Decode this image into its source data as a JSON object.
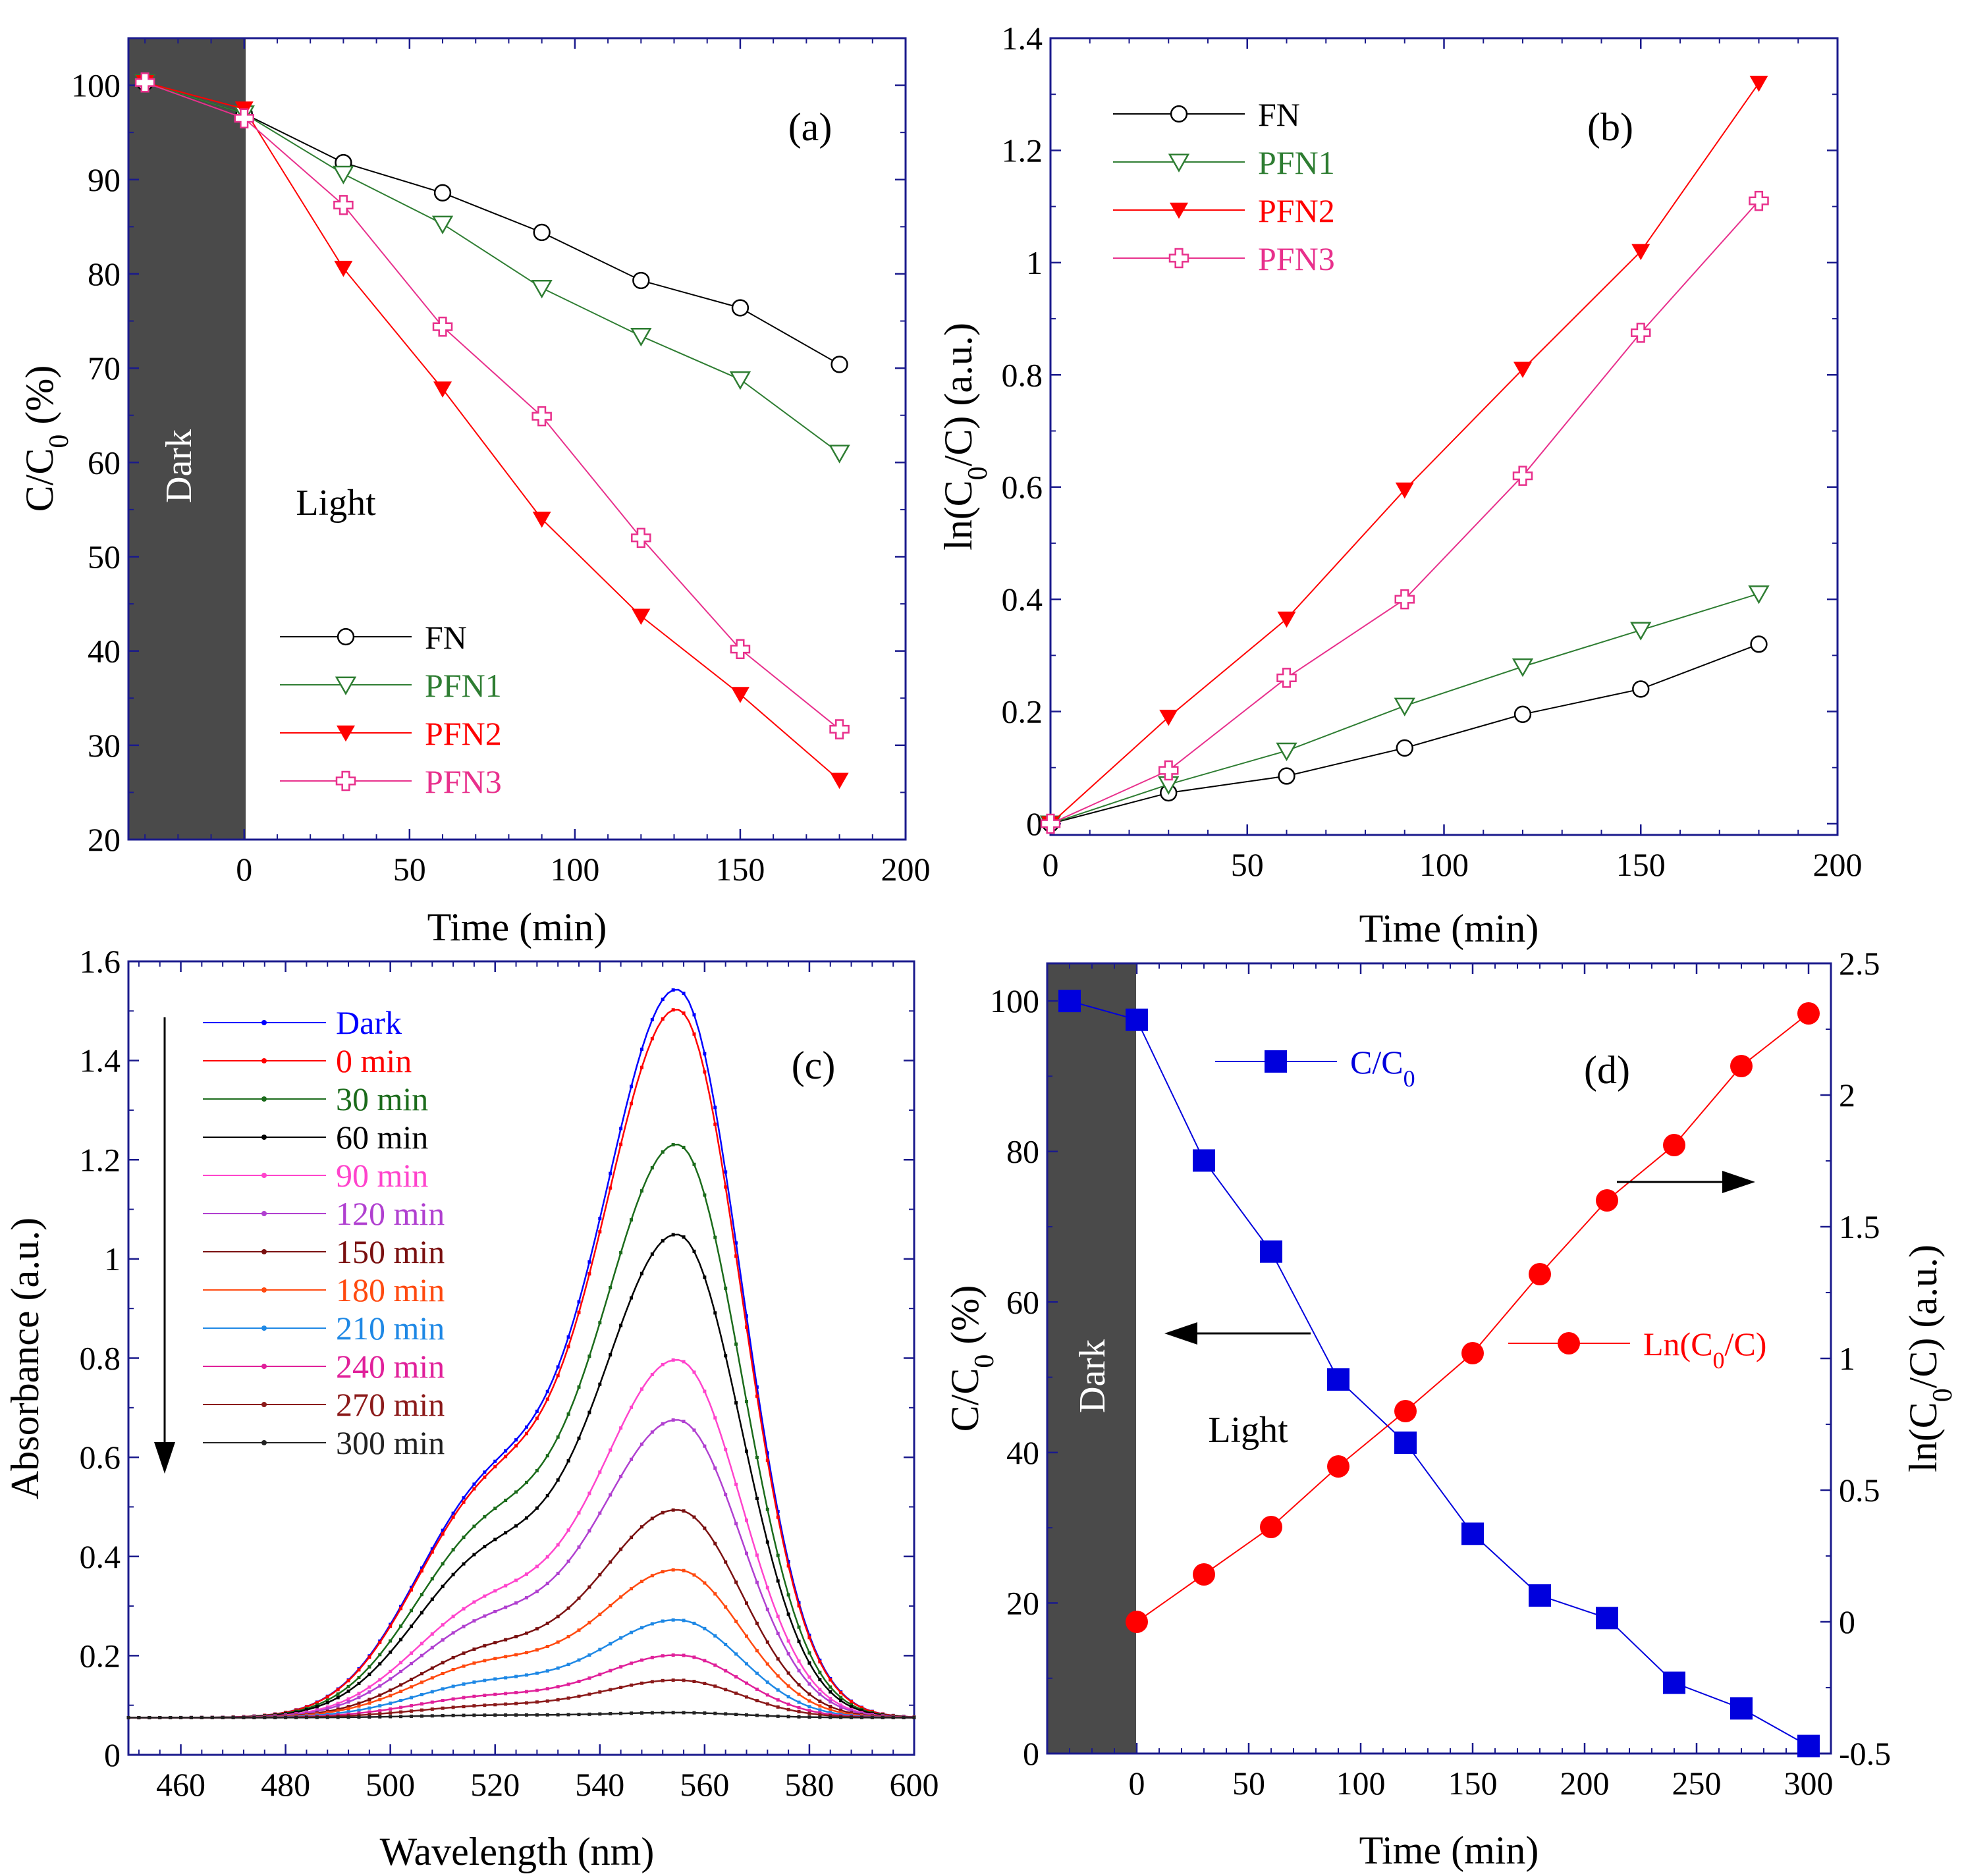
{
  "colors": {
    "FN": "#000000",
    "PFN1": "#2e7d32",
    "PFN2": "#ff0000",
    "PFN3": "#e8308c",
    "frame": "#1a1a8c",
    "dark_band": "#4a4a4a"
  },
  "charts": {
    "a": {
      "type": "line",
      "panel_label": "(a)",
      "xlabel": "Time (min)",
      "ylabel": "C/C0 (%)",
      "xlim": [
        -35,
        200
      ],
      "ylim": [
        20,
        105
      ],
      "xticks": [
        "0",
        "50",
        "100",
        "150",
        "200"
      ],
      "yticks": [
        "20",
        "30",
        "40",
        "50",
        "60",
        "70",
        "80",
        "90",
        "100"
      ],
      "annotations": {
        "dark": "Dark",
        "light": "Light"
      },
      "series": [
        {
          "name": "FN",
          "x": [
            -30,
            0,
            30,
            60,
            90,
            120,
            150,
            180
          ],
          "y": [
            100.3,
            97,
            91.8,
            88.6,
            84.4,
            79.3,
            76.4,
            70.4
          ]
        },
        {
          "name": "PFN1",
          "x": [
            -30,
            0,
            30,
            60,
            90,
            120,
            150,
            180
          ],
          "y": [
            100.3,
            97,
            90.6,
            85.3,
            78.5,
            73.4,
            68.8,
            61
          ]
        },
        {
          "name": "PFN2",
          "x": [
            -30,
            0,
            30,
            60,
            90,
            120,
            150,
            180
          ],
          "y": [
            100.3,
            97.5,
            80.6,
            67.8,
            54,
            43.7,
            35.4,
            26.3
          ]
        },
        {
          "name": "PFN3",
          "x": [
            -30,
            0,
            30,
            60,
            90,
            120,
            150,
            180
          ],
          "y": [
            100.3,
            96.5,
            87.3,
            74.4,
            64.9,
            52,
            40.2,
            31.7
          ]
        }
      ]
    },
    "b": {
      "type": "line",
      "panel_label": "(b)",
      "xlabel": "Time (min)",
      "ylabel": "ln(C0/C) (a.u.)",
      "xlim": [
        0,
        200
      ],
      "ylim": [
        -0.02,
        1.4
      ],
      "xticks": [
        "0",
        "50",
        "100",
        "150",
        "200"
      ],
      "yticks": [
        "0",
        "0.2",
        "0.4",
        "0.6",
        "0.8",
        "1",
        "1.2",
        "1.4"
      ],
      "series": [
        {
          "name": "FN",
          "x": [
            0,
            30,
            60,
            90,
            120,
            150,
            180
          ],
          "y": [
            0,
            0.055,
            0.085,
            0.135,
            0.195,
            0.24,
            0.32
          ]
        },
        {
          "name": "PFN1",
          "x": [
            0,
            30,
            60,
            90,
            120,
            150,
            180
          ],
          "y": [
            0,
            0.07,
            0.13,
            0.21,
            0.28,
            0.345,
            0.41
          ]
        },
        {
          "name": "PFN2",
          "x": [
            0,
            30,
            60,
            90,
            120,
            150,
            180
          ],
          "y": [
            0,
            0.19,
            0.365,
            0.595,
            0.81,
            1.02,
            1.32
          ]
        },
        {
          "name": "PFN3",
          "x": [
            0,
            30,
            60,
            90,
            120,
            150,
            180
          ],
          "y": [
            0,
            0.095,
            0.26,
            0.4,
            0.62,
            0.875,
            1.11
          ]
        }
      ]
    },
    "c": {
      "type": "line",
      "panel_label": "(c)",
      "xlabel": "Wavelength (nm)",
      "ylabel": "Absorbance (a.u.)",
      "xlim": [
        450,
        600
      ],
      "ylim": [
        0,
        1.6
      ],
      "xticks": [
        "460",
        "480",
        "500",
        "520",
        "540",
        "560",
        "580",
        "600"
      ],
      "yticks": [
        "0",
        "0.2",
        "0.4",
        "0.6",
        "0.8",
        "1",
        "1.2",
        "1.4",
        "1.6"
      ],
      "peak_nm": 555,
      "shoulder_nm": 518,
      "series": [
        {
          "name": "Dark",
          "color": "#0000ff",
          "peak": 1.53,
          "shoulder": 0.57
        },
        {
          "name": "0 min",
          "color": "#ff0000",
          "peak": 1.49,
          "shoulder": 0.56
        },
        {
          "name": "30 min",
          "color": "#1b6b1b",
          "peak": 1.22,
          "shoulder": 0.48
        },
        {
          "name": "60 min",
          "color": "#000000",
          "peak": 1.04,
          "shoulder": 0.42
        },
        {
          "name": "90 min",
          "color": "#ff44cc",
          "peak": 0.79,
          "shoulder": 0.32
        },
        {
          "name": "120 min",
          "color": "#b040d0",
          "peak": 0.67,
          "shoulder": 0.28
        },
        {
          "name": "150 min",
          "color": "#7a1010",
          "peak": 0.49,
          "shoulder": 0.22
        },
        {
          "name": "180 min",
          "color": "#ff4a10",
          "peak": 0.37,
          "shoulder": 0.19
        },
        {
          "name": "210 min",
          "color": "#1e88e5",
          "peak": 0.27,
          "shoulder": 0.15
        },
        {
          "name": "240 min",
          "color": "#e0209a",
          "peak": 0.2,
          "shoulder": 0.12
        },
        {
          "name": "270 min",
          "color": "#8b1a1a",
          "peak": 0.15,
          "shoulder": 0.1
        },
        {
          "name": "300 min",
          "color": "#222222",
          "peak": 0.085,
          "shoulder": 0.08
        }
      ]
    },
    "d": {
      "type": "line",
      "panel_label": "(d)",
      "xlabel": "Time (min)",
      "ylabel_left": "C/C0 (%)",
      "ylabel_right": "ln(C0/C) (a.u.)",
      "xlim": [
        -40,
        310
      ],
      "ylim_left": [
        0,
        105
      ],
      "ylim_right": [
        -0.5,
        2.5
      ],
      "xticks": [
        "0",
        "50",
        "100",
        "150",
        "200",
        "250",
        "300"
      ],
      "yticks_left": [
        "0",
        "20",
        "40",
        "60",
        "80",
        "100"
      ],
      "yticks_right": [
        "-0.5",
        "0",
        "0.5",
        "1",
        "1.5",
        "2",
        "2.5"
      ],
      "annotations": {
        "dark": "Dark",
        "light": "Light"
      },
      "series": [
        {
          "name": "C/C0",
          "axis": "left",
          "color": "#0000dd",
          "x": [
            -30,
            0,
            30,
            60,
            90,
            120,
            150,
            180,
            210,
            240,
            270,
            300
          ],
          "y": [
            100,
            97.5,
            78.8,
            66.7,
            49.7,
            41.3,
            29.2,
            21,
            18,
            9.4,
            6,
            1
          ]
        },
        {
          "name": "Ln(C0/C)",
          "axis": "right",
          "color": "#ff0000",
          "x": [
            0,
            30,
            60,
            90,
            120,
            150,
            180,
            210,
            240,
            270,
            300
          ],
          "y": [
            0,
            0.18,
            0.36,
            0.59,
            0.8,
            1.02,
            1.32,
            1.6,
            1.81,
            2.11,
            2.31
          ]
        }
      ]
    }
  }
}
